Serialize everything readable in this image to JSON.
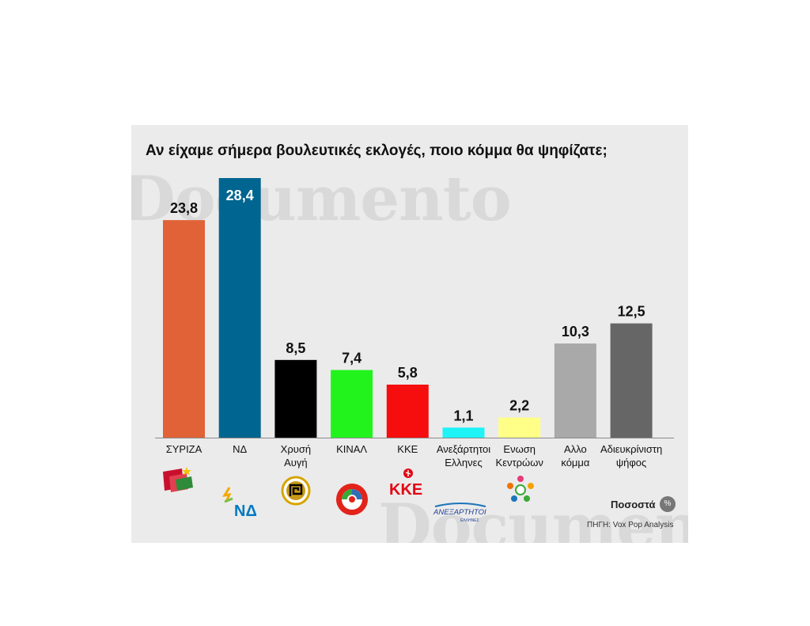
{
  "title": "Αν είχαμε σήμερα βουλευτικές εκλογές, ποιο κόμμα θα ψηφίζατε;",
  "watermark": "Documento",
  "legend": {
    "label": "Ποσοστά",
    "badge": "%"
  },
  "source": "ΠΗΓΗ: Vox Pop Analysis",
  "logos": {
    "nd_text": "ΝΔ",
    "kke_text": "ΚΚΕ",
    "anel_text": "ΑΝΕΞΑΡΤΗΤΟΙ",
    "anel_sub": "ΕΛΛΗΝΕΣ"
  },
  "chart_data": {
    "type": "bar",
    "categories": [
      "ΣΥΡΙΖΑ",
      "ΝΔ",
      "Χρυσή Αυγή",
      "ΚΙΝΑΛ",
      "ΚΚΕ",
      "Ανεξάρτητοι Ελληνες",
      "Ενωση Κεντρώων",
      "Αλλο κόμμα",
      "Αδιευκρίνιστη ψήφος"
    ],
    "category_lines": [
      [
        "ΣΥΡΙΖΑ"
      ],
      [
        "ΝΔ"
      ],
      [
        "Χρυσή",
        "Αυγή"
      ],
      [
        "ΚΙΝΑΛ"
      ],
      [
        "ΚΚΕ"
      ],
      [
        "Ανεξάρτητοι",
        "Ελληνες"
      ],
      [
        "Ενωση",
        "Κεντρώων"
      ],
      [
        "Αλλο",
        "κόμμα"
      ],
      [
        "Αδιευκρίνιστη",
        "ψήφος"
      ]
    ],
    "values": [
      23.8,
      28.4,
      8.5,
      7.4,
      5.8,
      1.1,
      2.2,
      10.3,
      12.5
    ],
    "value_labels": [
      "23,8",
      "28,4",
      "8,5",
      "7,4",
      "5,8",
      "1,1",
      "2,2",
      "10,3",
      "12,5"
    ],
    "colors": [
      "#e06236",
      "#006590",
      "#000000",
      "#22f31d",
      "#f60d0d",
      "#1ef3f7",
      "#ffff88",
      "#a9a9a9",
      "#666666"
    ],
    "label_inside": [
      false,
      true,
      false,
      false,
      false,
      false,
      false,
      false,
      false
    ],
    "ylim": [
      0,
      28.4
    ],
    "grid": false,
    "legend_position": "bottom-right"
  }
}
